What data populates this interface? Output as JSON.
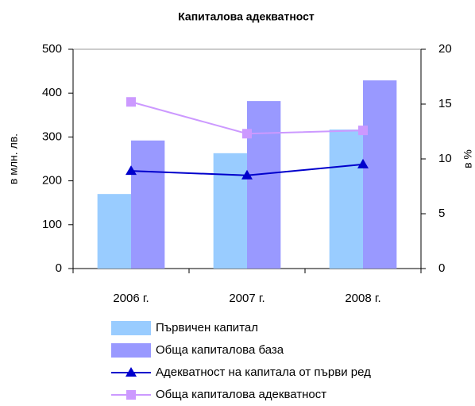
{
  "chart_data": {
    "type": "bar",
    "title": "Капиталова адекватност",
    "categories": [
      "2006 г.",
      "2007 г.",
      "2008 г."
    ],
    "y_label": "в млн. лв.",
    "y2_label": "в %",
    "series": [
      {
        "name": "Първичен капитал",
        "type": "bar",
        "color": "#99ccff",
        "values": [
          170,
          263,
          317
        ]
      },
      {
        "name": "Обща капиталова база",
        "type": "bar",
        "color": "#9999ff",
        "values": [
          292,
          382,
          429
        ]
      },
      {
        "name": "Адекватност на капитала от първи ред",
        "type": "line",
        "axis": "y2",
        "marker": "triangle",
        "color": "#0000cc",
        "values": [
          8.9,
          8.5,
          9.5
        ]
      },
      {
        "name": "Обща капиталова адекватност",
        "type": "line",
        "axis": "y2",
        "marker": "square",
        "color": "#cc99ff",
        "values": [
          15.2,
          12.3,
          12.6
        ]
      }
    ],
    "ylim": [
      0,
      500
    ],
    "yticks": [
      0,
      100,
      200,
      300,
      400,
      500
    ],
    "y2lim": [
      0,
      20
    ],
    "y2ticks": [
      0,
      5,
      10,
      15,
      20
    ],
    "grid": false,
    "legend": "bottom"
  }
}
